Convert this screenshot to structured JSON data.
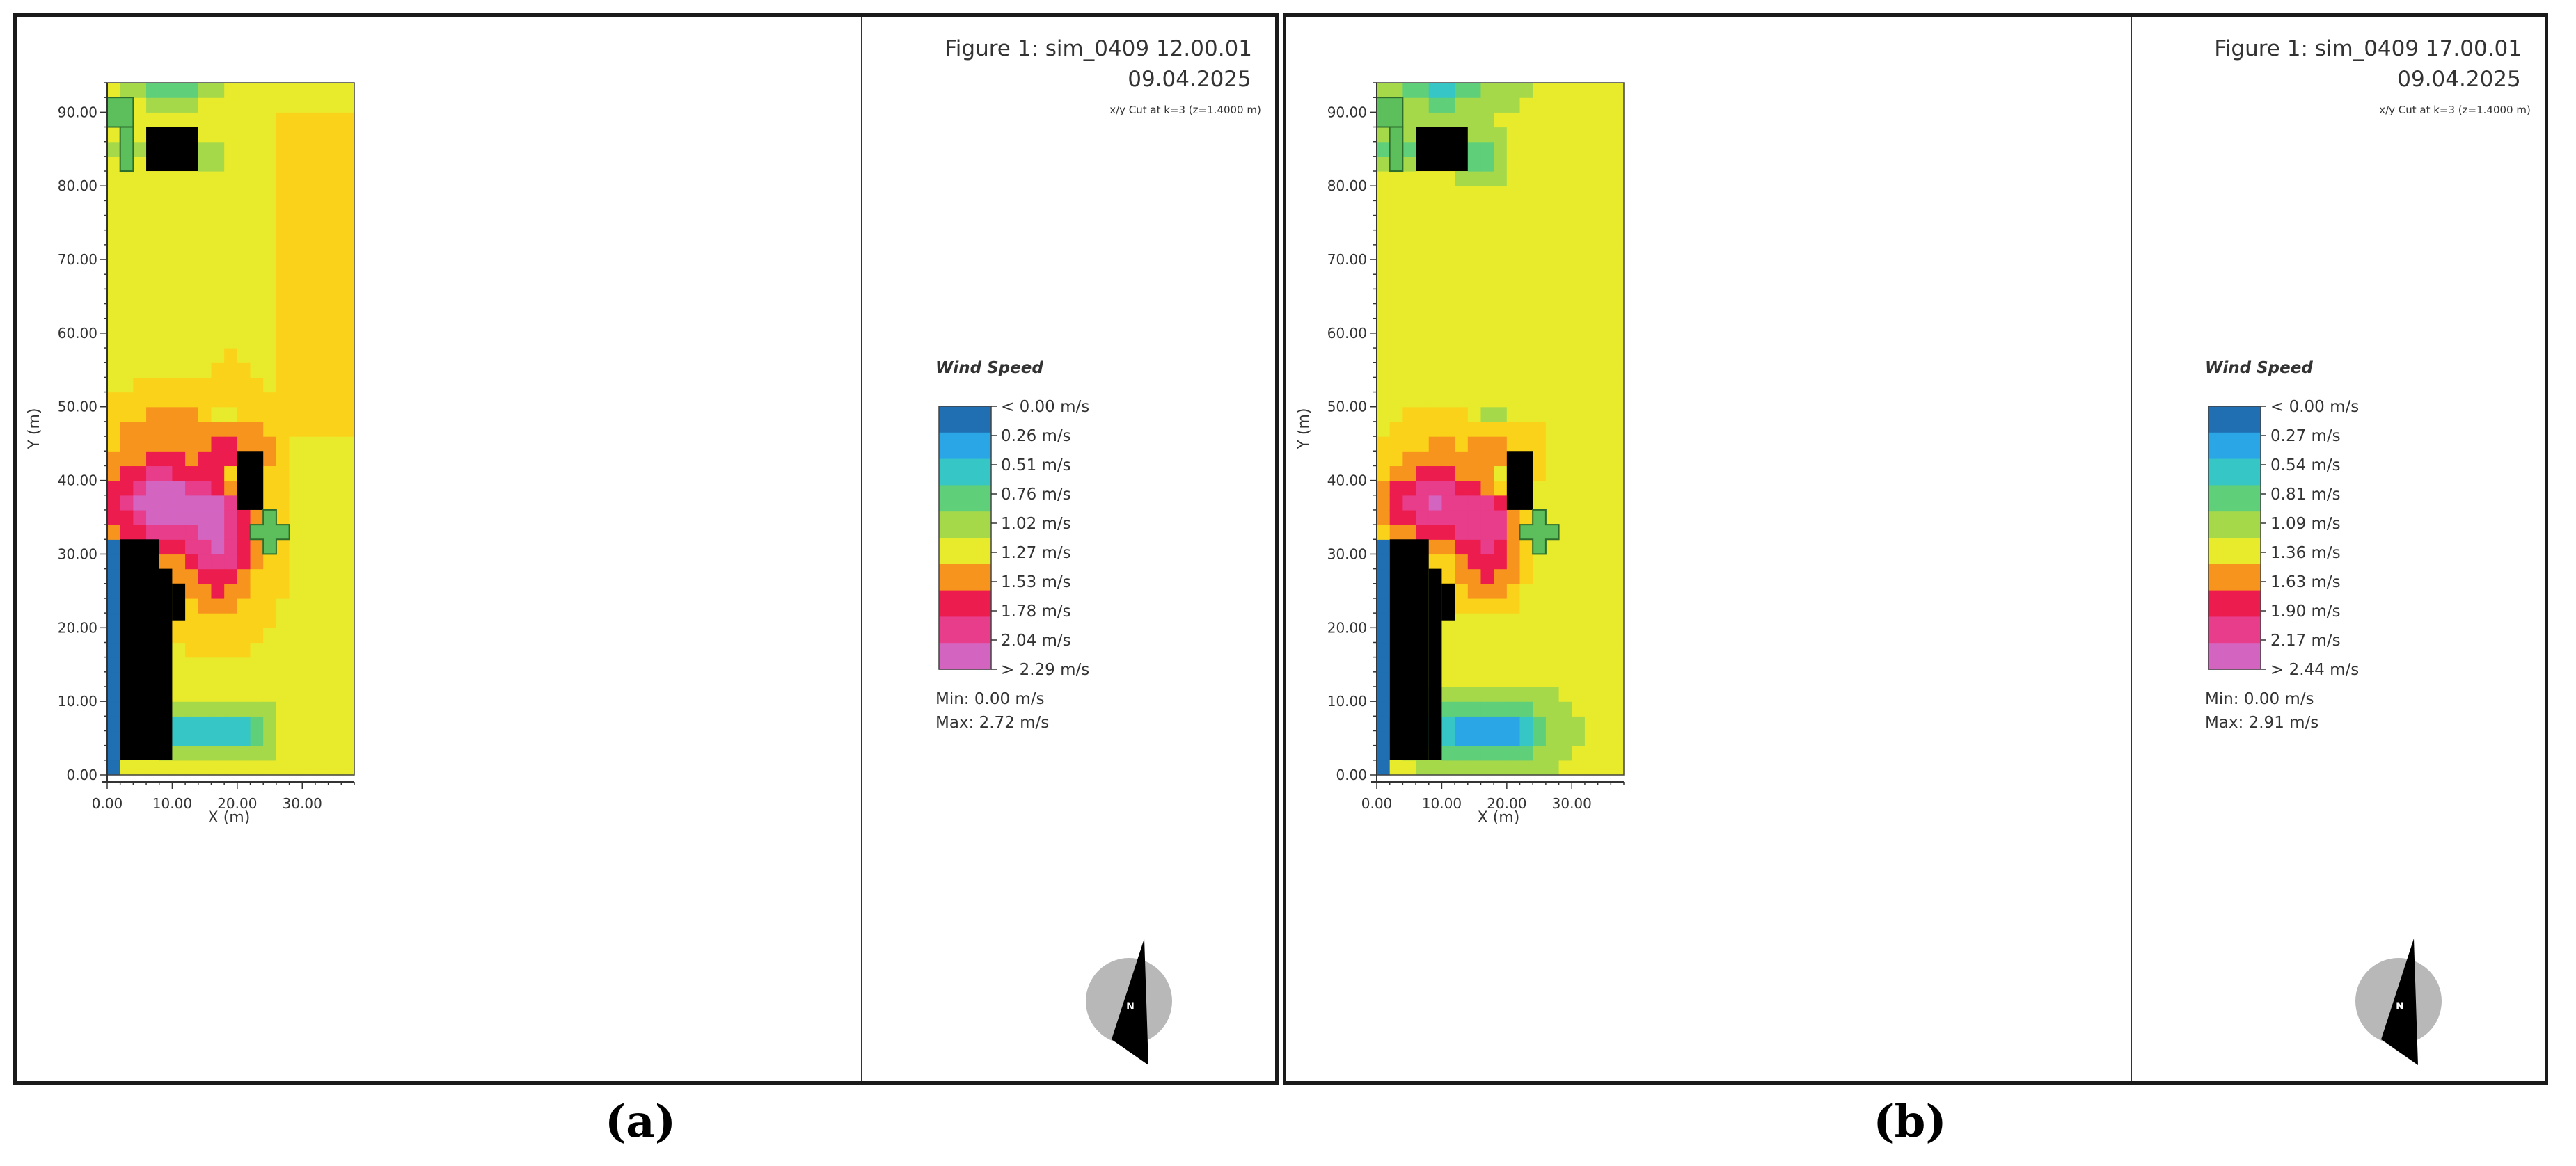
{
  "chart_data": [
    {
      "type": "heatmap",
      "panel_label": "(a)",
      "title": "Figure 1: sim_0409 12.00.01",
      "date": "09.04.2025",
      "subtitle": "x/y Cut at k=3 (z=1.4000 m)",
      "xlabel": "X (m)",
      "ylabel": "Y (m)",
      "xlim": [
        0,
        38
      ],
      "ylim": [
        0,
        94
      ],
      "x_ticks": [
        "0.00",
        "10.00",
        "20.00",
        "30.00"
      ],
      "y_ticks": [
        "0.00",
        "10.00",
        "20.00",
        "30.00",
        "40.00",
        "50.00",
        "60.00",
        "70.00",
        "80.00",
        "90.00"
      ],
      "legend_title": "Wind Speed",
      "legend_labels": [
        "< 0.00 m/s",
        "0.26  m/s",
        "0.51  m/s",
        "0.76  m/s",
        "1.02  m/s",
        "1.27  m/s",
        "1.53  m/s",
        "1.78  m/s",
        "2.04  m/s",
        "> 2.29 m/s"
      ],
      "min_text": "Min: 0.00 m/s",
      "max_text": "Max: 2.72 m/s",
      "compass_label": "N"
    },
    {
      "type": "heatmap",
      "panel_label": "(b)",
      "title": "Figure 1: sim_0409 17.00.01",
      "date": "09.04.2025",
      "subtitle": "x/y Cut at k=3 (z=1.4000 m)",
      "xlabel": "X (m)",
      "ylabel": "Y (m)",
      "xlim": [
        0,
        38
      ],
      "ylim": [
        0,
        94
      ],
      "x_ticks": [
        "0.00",
        "10.00",
        "20.00",
        "30.00"
      ],
      "y_ticks": [
        "0.00",
        "10.00",
        "20.00",
        "30.00",
        "40.00",
        "50.00",
        "60.00",
        "70.00",
        "80.00",
        "90.00"
      ],
      "legend_title": "Wind Speed",
      "legend_labels": [
        "< 0.00 m/s",
        "0.27  m/s",
        "0.54  m/s",
        "0.81  m/s",
        "1.09  m/s",
        "1.36  m/s",
        "1.63  m/s",
        "1.90  m/s",
        "2.17  m/s",
        "> 2.44 m/s"
      ],
      "min_text": "Min: 0.00 m/s",
      "max_text": "Max: 2.91 m/s",
      "compass_label": "N"
    }
  ],
  "colors": {
    "scale": [
      "#1f6fb2",
      "#2aa6e6",
      "#36c6c6",
      "#5fcf7a",
      "#a6d94a",
      "#e8ea2c",
      "#fbd21a",
      "#f7941d",
      "#ec1c4e",
      "#e73d8a",
      "#d365c1"
    ],
    "building": "#000000",
    "vegetation": "#5cbf5c",
    "frame": "#1a1a1a"
  }
}
